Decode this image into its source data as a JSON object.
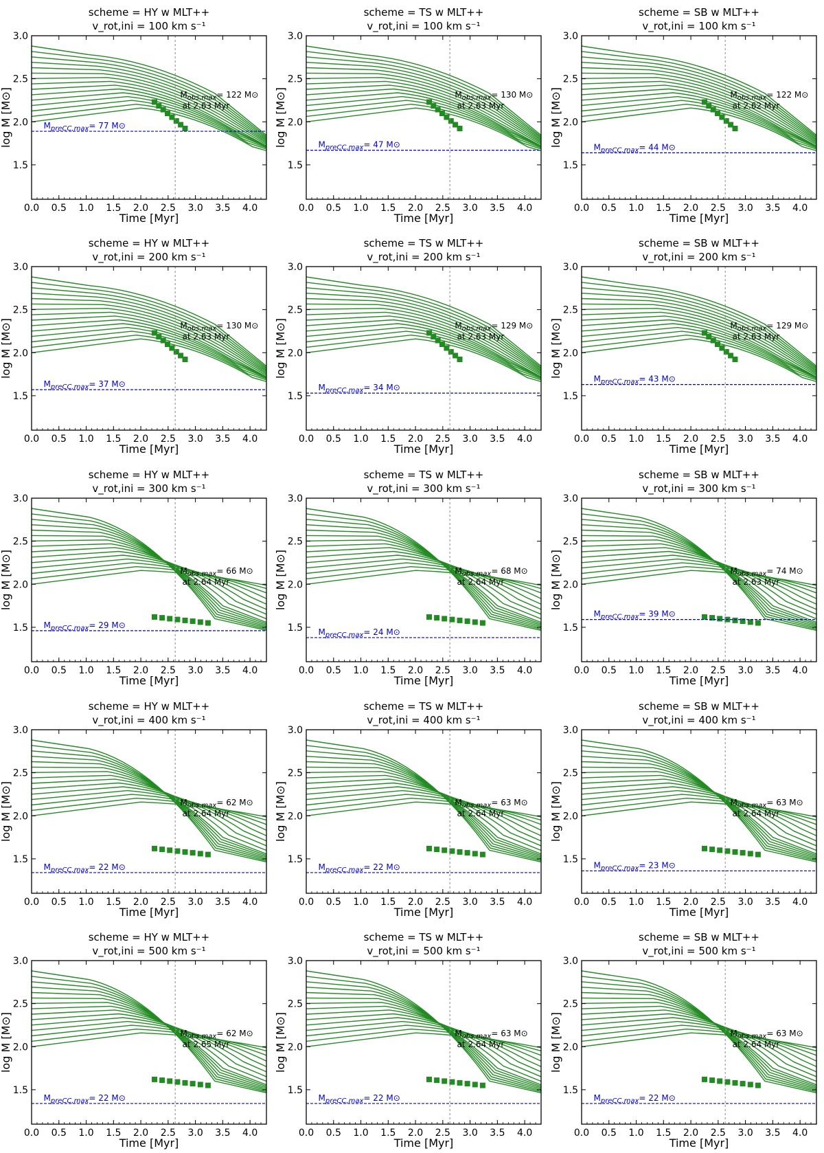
{
  "figure": {
    "xlabel": "Time [Myr]",
    "ylabel": "log M [M⊙]",
    "xticks": [
      "0.0",
      "0.5",
      "1.0",
      "1.5",
      "2.0",
      "2.5",
      "3.0",
      "3.5",
      "4.0"
    ],
    "yticks": [
      "1.5",
      "2.0",
      "2.5",
      "3.0"
    ],
    "xlim": [
      0.0,
      4.3
    ],
    "ylim": [
      1.1,
      3.0
    ],
    "cluster_age_line_myr": 2.63,
    "colors": {
      "tracks": "#228B22",
      "pre_cc": "#0000dd",
      "obs_cross": "#e06666",
      "age_line": "#888888"
    }
  },
  "chart_data": [
    {
      "type": "line",
      "title": "scheme = HY w MLT++",
      "subtitle": "v_rot,ini = 100 km s⁻¹",
      "obs_label": "M_obs,max= 122 M⊙",
      "obs_age": "at 2.63 Myr",
      "precc_label": "M_preCC,max= 77 M⊙",
      "precc_logM": 1.89,
      "xlabel": "Time [Myr]",
      "ylabel": "log M [M⊙]"
    },
    {
      "type": "line",
      "title": "scheme = TS w MLT++",
      "subtitle": "v_rot,ini = 100 km s⁻¹",
      "obs_label": "M_obs,max= 130 M⊙",
      "obs_age": "at 2.63 Myr",
      "precc_label": "M_preCC,max= 47 M⊙",
      "precc_logM": 1.67,
      "xlabel": "Time [Myr]",
      "ylabel": "log M [M⊙]"
    },
    {
      "type": "line",
      "title": "scheme = SB w MLT++",
      "subtitle": "v_rot,ini = 100 km s⁻¹",
      "obs_label": "M_obs,max= 122 M⊙",
      "obs_age": "at 2.62 Myr",
      "precc_label": "M_preCC,max= 44 M⊙",
      "precc_logM": 1.64,
      "xlabel": "Time [Myr]",
      "ylabel": "log M [M⊙]"
    },
    {
      "type": "line",
      "title": "scheme = HY w MLT++",
      "subtitle": "v_rot,ini = 200 km s⁻¹",
      "obs_label": "M_obs,max= 130 M⊙",
      "obs_age": "at 2.63 Myr",
      "precc_label": "M_preCC,max= 37 M⊙",
      "precc_logM": 1.57,
      "xlabel": "Time [Myr]",
      "ylabel": "log M [M⊙]"
    },
    {
      "type": "line",
      "title": "scheme = TS w MLT++",
      "subtitle": "v_rot,ini = 200 km s⁻¹",
      "obs_label": "M_obs,max= 129 M⊙",
      "obs_age": "at 2.63 Myr",
      "precc_label": "M_preCC,max= 34 M⊙",
      "precc_logM": 1.53,
      "xlabel": "Time [Myr]",
      "ylabel": "log M [M⊙]"
    },
    {
      "type": "line",
      "title": "scheme = SB w MLT++",
      "subtitle": "v_rot,ini = 200 km s⁻¹",
      "obs_label": "M_obs,max= 129 M⊙",
      "obs_age": "at 2.63 Myr",
      "precc_label": "M_preCC,max= 43 M⊙",
      "precc_logM": 1.63,
      "xlabel": "Time [Myr]",
      "ylabel": "log M [M⊙]"
    },
    {
      "type": "line",
      "title": "scheme = HY w MLT++",
      "subtitle": "v_rot,ini = 300 km s⁻¹",
      "obs_label": "M_obs,max= 66 M⊙",
      "obs_age": "at 2.64 Myr",
      "precc_label": "M_preCC,max= 29 M⊙",
      "precc_logM": 1.46,
      "xlabel": "Time [Myr]",
      "ylabel": "log M [M⊙]"
    },
    {
      "type": "line",
      "title": "scheme = TS w MLT++",
      "subtitle": "v_rot,ini = 300 km s⁻¹",
      "obs_label": "M_obs,max= 68 M⊙",
      "obs_age": "at 2.64 Myr",
      "precc_label": "M_preCC,max= 24 M⊙",
      "precc_logM": 1.38,
      "xlabel": "Time [Myr]",
      "ylabel": "log M [M⊙]"
    },
    {
      "type": "line",
      "title": "scheme = SB w MLT++",
      "subtitle": "v_rot,ini = 300 km s⁻¹",
      "obs_label": "M_obs,max= 74 M⊙",
      "obs_age": "at 2.63 Myr",
      "precc_label": "M_preCC,max= 39 M⊙",
      "precc_logM": 1.59,
      "xlabel": "Time [Myr]",
      "ylabel": "log M [M⊙]"
    },
    {
      "type": "line",
      "title": "scheme = HY w MLT++",
      "subtitle": "v_rot,ini = 400 km s⁻¹",
      "obs_label": "M_obs,max= 62 M⊙",
      "obs_age": "at 2.64 Myr",
      "precc_label": "M_preCC,max= 22 M⊙",
      "precc_logM": 1.34,
      "xlabel": "Time [Myr]",
      "ylabel": "log M [M⊙]"
    },
    {
      "type": "line",
      "title": "scheme = TS w MLT++",
      "subtitle": "v_rot,ini = 400 km s⁻¹",
      "obs_label": "M_obs,max= 63 M⊙",
      "obs_age": "at 2.64 Myr",
      "precc_label": "M_preCC,max= 22 M⊙",
      "precc_logM": 1.34,
      "xlabel": "Time [Myr]",
      "ylabel": "log M [M⊙]"
    },
    {
      "type": "line",
      "title": "scheme = SB w MLT++",
      "subtitle": "v_rot,ini = 400 km s⁻¹",
      "obs_label": "M_obs,max= 63 M⊙",
      "obs_age": "at 2.64 Myr",
      "precc_label": "M_preCC,max= 23 M⊙",
      "precc_logM": 1.36,
      "xlabel": "Time [Myr]",
      "ylabel": "log M [M⊙]"
    },
    {
      "type": "line",
      "title": "scheme = HY w MLT++",
      "subtitle": "v_rot,ini = 500 km s⁻¹",
      "obs_label": "M_obs,max= 62 M⊙",
      "obs_age": "at 2.65 Myr",
      "precc_label": "M_preCC,max= 22 M⊙",
      "precc_logM": 1.34,
      "xlabel": "Time [Myr]",
      "ylabel": "log M [M⊙]"
    },
    {
      "type": "line",
      "title": "scheme = TS w MLT++",
      "subtitle": "v_rot,ini = 500 km s⁻¹",
      "obs_label": "M_obs,max= 63 M⊙",
      "obs_age": "at 2.64 Myr",
      "precc_label": "M_preCC,max= 22 M⊙",
      "precc_logM": 1.34,
      "xlabel": "Time [Myr]",
      "ylabel": "log M [M⊙]"
    },
    {
      "type": "line",
      "title": "scheme = SB w MLT++",
      "subtitle": "v_rot,ini = 500 km s⁻¹",
      "obs_label": "M_obs,max= 63 M⊙",
      "obs_age": "at 2.64 Myr",
      "precc_label": "M_preCC,max= 22 M⊙",
      "precc_logM": 1.34,
      "xlabel": "Time [Myr]",
      "ylabel": "log M [M⊙]"
    }
  ]
}
